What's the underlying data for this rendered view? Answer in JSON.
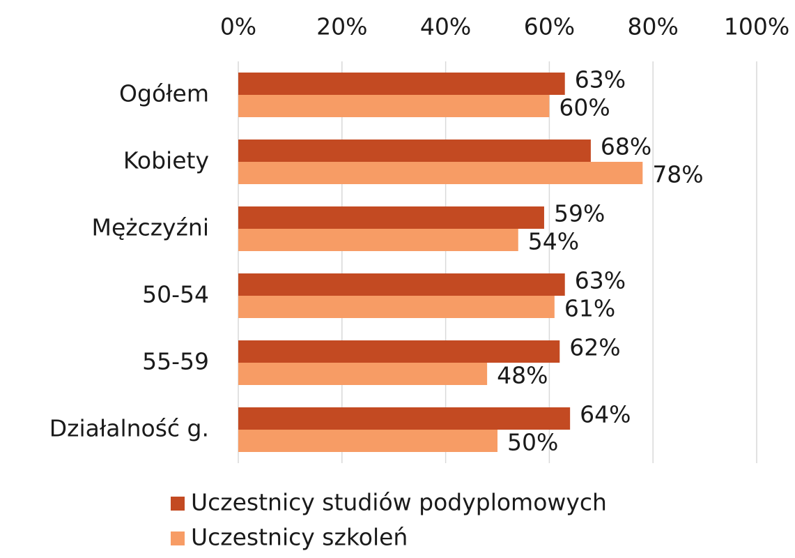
{
  "chart_data": {
    "type": "barh",
    "categories": [
      "Ogółem",
      "Kobiety",
      "Mężczyźni",
      "50-54",
      "55-59",
      "Działalność g."
    ],
    "series": [
      {
        "name": "Uczestnicy studiów podyplomowych",
        "color": "#c34a22",
        "values": [
          63,
          68,
          59,
          63,
          62,
          64
        ],
        "value_labels": [
          "63%",
          "68%",
          "59%",
          "63%",
          "62%",
          "64%"
        ]
      },
      {
        "name": "Uczestnicy szkoleń",
        "color": "#f79c65",
        "values": [
          60,
          78,
          54,
          61,
          48,
          50
        ],
        "value_labels": [
          "60%",
          "78%",
          "54%",
          "61%",
          "48%",
          "50%"
        ]
      }
    ],
    "xlim": [
      0,
      100
    ],
    "xticks": [
      {
        "value": 0,
        "label": "0%"
      },
      {
        "value": 20,
        "label": "20%"
      },
      {
        "value": 40,
        "label": "40%"
      },
      {
        "value": 60,
        "label": "60%"
      },
      {
        "value": 80,
        "label": "80%"
      },
      {
        "value": 100,
        "label": "100%"
      }
    ],
    "grid": true,
    "legend": "bottom"
  }
}
